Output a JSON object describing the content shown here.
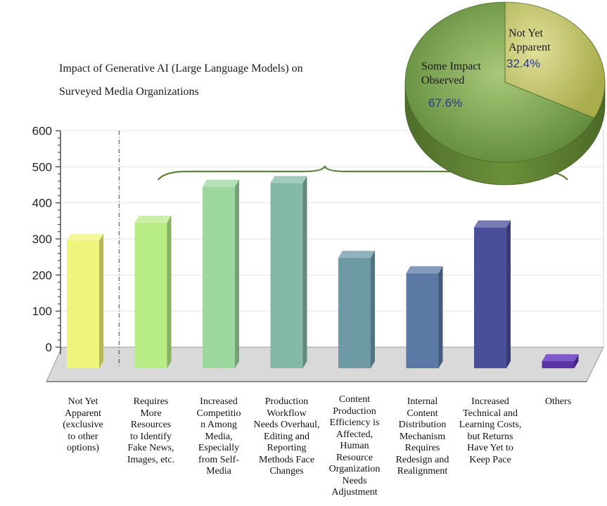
{
  "chart_data": [
    {
      "type": "bar",
      "title": "Impact of Generative AI (Large Language Models) on",
      "subtitle": "Surveyed Media Organizations",
      "ylim": [
        0,
        600
      ],
      "yticks": [
        "0",
        "100",
        "200",
        "300",
        "400",
        "500",
        "600"
      ],
      "categories": [
        "Not Yet Apparent (exclusive to other options)",
        "Requires More Resources to Identify Fake News, Images, etc.",
        "Increased Competitio n Among Media, Especially from Self-Media",
        "Production Workflow Needs Overhaul, Editing and Reporting Methods Face Changes",
        "Content Production Efficiency is Affected, Human Resource Organization Needs Adjustment",
        "Internal Content Distribution Mechanism Requires Redesign and Realignment",
        "Increased Technical and Learning Costs, but Returns Have Yet to Keep Pace",
        "Others"
      ],
      "category_lines": [
        [
          "Not Yet",
          "Apparent",
          "(exclusive",
          "to other",
          "options)"
        ],
        [
          "Requires",
          "More",
          "Resources",
          "to Identify",
          "Fake News,",
          "Images, etc."
        ],
        [
          "Increased",
          "Competitio",
          "n Among",
          "Media,",
          "Especially",
          "from Self-",
          "Media"
        ],
        [
          "Production",
          "Workflow",
          "Needs Overhaul,",
          "Editing and",
          "Reporting",
          "Methods Face",
          "Changes"
        ],
        [
          "Content",
          "Production",
          "Efficiency is",
          "Affected,",
          "Human",
          "Resource",
          "Organization",
          "Needs",
          "Adjustment"
        ],
        [
          "Internal",
          "Content",
          "Distribution",
          "Mechanism",
          "Requires",
          "Redesign and",
          "Realignment"
        ],
        [
          "Increased",
          "Technical and",
          "Learning Costs,",
          "but Returns",
          "Have Yet to",
          "Keep Pace"
        ],
        [
          "Others"
        ]
      ],
      "values": [
        295,
        345,
        445,
        455,
        248,
        205,
        332,
        13
      ],
      "colors": [
        "#eef57a",
        "#b8ec84",
        "#9cd7a0",
        "#84b8a8",
        "#6e9aa6",
        "#5c78a4",
        "#4a4f9a",
        "#6a3cc2"
      ],
      "grid": true,
      "separator_after_index": 0,
      "brace_spans_indices": [
        1,
        6
      ]
    },
    {
      "type": "pie",
      "labels": [
        "Not Yet\nApparent",
        "Some Impact\nObserved"
      ],
      "values": [
        32.4,
        67.6
      ],
      "value_labels": [
        "32.4%",
        "67.6%"
      ],
      "colors": [
        "#b9bd5a",
        "#7da44f"
      ]
    }
  ]
}
